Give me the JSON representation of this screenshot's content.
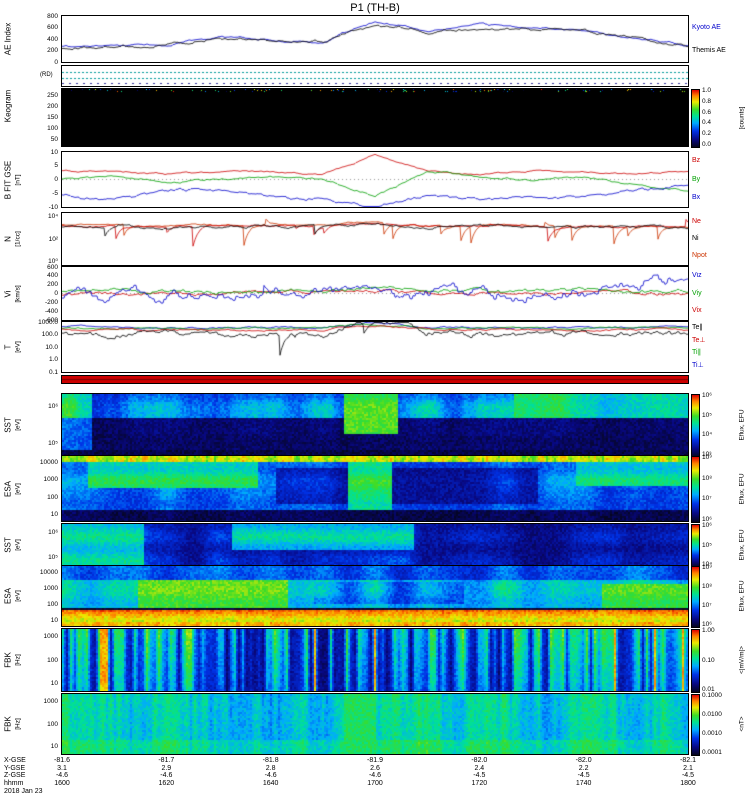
{
  "title": "P1 (TH-B)",
  "bottom_axis": {
    "date": "2018 Jan 23",
    "rows": [
      {
        "label": "X-GSE",
        "values": [
          "-81.6",
          "-81.7",
          "-81.8",
          "-81.9",
          "-82.0",
          "-82.0",
          "-82.1"
        ]
      },
      {
        "label": "Y-GSE",
        "values": [
          "3.1",
          "2.9",
          "2.8",
          "2.6",
          "2.4",
          "2.2",
          "2.1"
        ]
      },
      {
        "label": "Z-GSE",
        "values": [
          "-4.6",
          "-4.6",
          "-4.6",
          "-4.6",
          "-4.5",
          "-4.5",
          "-4.5"
        ]
      },
      {
        "label": "hhmm",
        "values": [
          "1600",
          "1620",
          "1640",
          "1700",
          "1720",
          "1740",
          "1800"
        ]
      }
    ]
  },
  "panels": [
    {
      "key": "ae",
      "ylabel": "AE Index",
      "yticks": [
        "800",
        "600",
        "400",
        "200",
        "0"
      ],
      "legend": [
        {
          "label": "Kyoto AE",
          "color": "#0000cc"
        },
        {
          "label": "Themis AE",
          "color": "#000000"
        }
      ]
    },
    {
      "key": "stations",
      "ylabel": "(RD)"
    },
    {
      "key": "keogram",
      "ylabel": "Keogram",
      "yticks": [
        "250",
        "200",
        "150",
        "100",
        "50"
      ],
      "colorbar": {
        "ticks": [
          "1.0",
          "0.8",
          "0.6",
          "0.4",
          "0.2",
          "0.0"
        ],
        "unit": "[counts]"
      }
    },
    {
      "key": "bfit",
      "ylabel": "B FIT GSE",
      "yunit": "[nT]",
      "yticks": [
        "10",
        "5",
        "0",
        "-5",
        "-10"
      ],
      "legend": [
        {
          "label": "Bz",
          "color": "#cc0000"
        },
        {
          "label": "By",
          "color": "#00a000"
        },
        {
          "label": "Bx",
          "color": "#0000cc"
        }
      ]
    },
    {
      "key": "density",
      "ylabel": "N",
      "yunit": "[1/cc]",
      "yticks": [
        "10⁴",
        "10²",
        "10⁰"
      ],
      "legend": [
        {
          "label": "Ne",
          "color": "#cc0000"
        },
        {
          "label": "Ni",
          "color": "#000000"
        },
        {
          "label": "Npot",
          "color": "#cc3300"
        }
      ]
    },
    {
      "key": "velocity",
      "ylabel": "Vi",
      "yunit": "[km/s]",
      "yticks": [
        "600",
        "400",
        "200",
        "0",
        "-200",
        "-400",
        "-600"
      ],
      "legend": [
        {
          "label": "Viz",
          "color": "#0000cc"
        },
        {
          "label": "Viy",
          "color": "#00a000"
        },
        {
          "label": "Vix",
          "color": "#cc0000"
        }
      ]
    },
    {
      "key": "temperature",
      "ylabel": "T",
      "yunit": "[eV]",
      "yticks": [
        "1000.0",
        "100.0",
        "10.0",
        "1.0",
        "0.1"
      ],
      "legend": [
        {
          "label": "Te∥",
          "color": "#000000"
        },
        {
          "label": "Te⊥",
          "color": "#cc0000"
        },
        {
          "label": "Ti∥",
          "color": "#00a000"
        },
        {
          "label": "Ti⊥",
          "color": "#0000cc"
        }
      ]
    },
    {
      "key": "modebar"
    },
    {
      "key": "sst_e",
      "ylabel": "SST",
      "yunit": "[eV]",
      "yticks": [
        "10⁶",
        "10⁵"
      ],
      "colorbar": {
        "ticks": [
          "10⁶",
          "10⁵",
          "10⁴",
          "10³"
        ],
        "unit": "Eflux, EFU"
      }
    },
    {
      "key": "esa_e",
      "ylabel": "ESA",
      "yunit": "[eV]",
      "yticks": [
        "10000",
        "1000",
        "100",
        "10"
      ],
      "colorbar": {
        "ticks": [
          "10⁹",
          "10⁸",
          "10⁷",
          "10⁶"
        ],
        "unit": "Eflux, EFU"
      }
    },
    {
      "key": "sst_i",
      "ylabel": "SST",
      "yunit": "[eV]",
      "yticks": [
        "10⁶",
        "10⁵"
      ],
      "colorbar": {
        "ticks": [
          "10⁶",
          "10⁵",
          "10⁴"
        ],
        "unit": "Eflux, EFU"
      }
    },
    {
      "key": "esa_i",
      "ylabel": "ESA",
      "yunit": "[eV]",
      "yticks": [
        "10000",
        "1000",
        "100",
        "10"
      ],
      "colorbar": {
        "ticks": [
          "10⁹",
          "10⁸",
          "10⁷",
          "10⁶"
        ],
        "unit": "Eflux, EFU"
      }
    },
    {
      "key": "fbk_e",
      "ylabel": "FBK",
      "yunit": "[Hz]",
      "yticks": [
        "1000",
        "100",
        "10"
      ],
      "colorbar": {
        "ticks": [
          "1.00",
          "0.10",
          "0.01"
        ],
        "unit": "<|mV/m|>"
      }
    },
    {
      "key": "fbk_b",
      "ylabel": "FBK",
      "yunit": "[Hz]",
      "yticks": [
        "1000",
        "100",
        "10"
      ],
      "colorbar": {
        "ticks": [
          "0.1000",
          "0.0100",
          "0.0010",
          "0.0001"
        ],
        "unit": "<nT>"
      }
    }
  ],
  "chart_data": [
    {
      "id": "ae_index",
      "type": "line",
      "ylabel": "AE Index",
      "ylim": [
        0,
        800
      ],
      "x": [
        "16:00",
        "16:10",
        "16:20",
        "16:30",
        "16:40",
        "16:50",
        "17:00",
        "17:10",
        "17:20",
        "17:30",
        "17:40",
        "17:50",
        "18:00"
      ],
      "series": [
        {
          "name": "Kyoto AE",
          "color": "#0000cc",
          "values": [
            260,
            280,
            300,
            430,
            400,
            350,
            720,
            560,
            640,
            600,
            560,
            420,
            300
          ]
        },
        {
          "name": "Themis AE",
          "color": "#000000",
          "values": [
            240,
            260,
            320,
            420,
            380,
            360,
            650,
            540,
            600,
            570,
            530,
            400,
            280
          ]
        }
      ]
    },
    {
      "id": "stations",
      "type": "availability",
      "note": "dotted ground-station data availability marks"
    },
    {
      "id": "keogram",
      "type": "heatmap",
      "ylabel": "Keogram",
      "ylim": [
        0,
        300
      ],
      "value_range": [
        0,
        1
      ],
      "unit": "counts",
      "note": "no imager data in interval (panel black)"
    },
    {
      "id": "b_fit_gse",
      "type": "line",
      "ylabel": "B FIT GSE [nT]",
      "ylim": [
        -10,
        10
      ],
      "series": [
        {
          "name": "Bz",
          "color": "#cc0000",
          "values": [
            3,
            3,
            2,
            3,
            3,
            2,
            9,
            3,
            2,
            3,
            3,
            2,
            3
          ]
        },
        {
          "name": "By",
          "color": "#00a000",
          "values": [
            0,
            1,
            -1,
            0,
            1,
            0,
            -6,
            3,
            1,
            0,
            1,
            -2,
            -4
          ]
        },
        {
          "name": "Bx",
          "color": "#0000cc",
          "values": [
            -6,
            -8,
            -4,
            -4,
            -7,
            -7,
            -10,
            -6,
            -7,
            -7,
            -6,
            -4,
            -2
          ]
        }
      ]
    },
    {
      "id": "density",
      "type": "line",
      "log": true,
      "ylabel": "N [1/cc]",
      "ylim": [
        0.1,
        10000
      ],
      "series": [
        {
          "name": "Npot",
          "color": "#cc3300",
          "values": [
            700,
            650,
            600,
            680,
            700,
            650,
            1500,
            600,
            650,
            700,
            680,
            600,
            520
          ]
        },
        {
          "name": "Ne",
          "color": "#cc0000",
          "values": [
            600,
            550,
            500,
            580,
            600,
            550,
            1200,
            500,
            550,
            600,
            580,
            500,
            450
          ]
        },
        {
          "name": "Ni",
          "color": "#000000",
          "values": [
            500,
            480,
            420,
            500,
            520,
            480,
            900,
            430,
            480,
            520,
            500,
            430,
            380
          ]
        }
      ]
    },
    {
      "id": "velocity",
      "type": "line",
      "ylabel": "Vi [km/s]",
      "ylim": [
        -600,
        600
      ],
      "series": [
        {
          "name": "Vix",
          "color": "#cc0000",
          "values": [
            -20,
            0,
            10,
            -10,
            0,
            10,
            60,
            0,
            -10,
            0,
            10,
            0,
            -40
          ]
        },
        {
          "name": "Viy",
          "color": "#00a000",
          "values": [
            40,
            50,
            40,
            30,
            40,
            50,
            120,
            50,
            40,
            40,
            50,
            60,
            80
          ]
        },
        {
          "name": "Viz",
          "color": "#0000cc",
          "values": [
            -20,
            -40,
            -60,
            -10,
            20,
            0,
            180,
            -60,
            -20,
            0,
            20,
            220,
            420
          ]
        }
      ]
    },
    {
      "id": "temperature",
      "type": "line",
      "log": true,
      "ylabel": "T [eV]",
      "ylim": [
        0.1,
        1000
      ],
      "series": [
        {
          "name": "Ti⊥",
          "color": "#0000cc",
          "values": [
            380,
            370,
            360,
            370,
            380,
            370,
            800,
            380,
            370,
            380,
            370,
            390,
            380
          ]
        },
        {
          "name": "Ti∥",
          "color": "#00a000",
          "values": [
            320,
            310,
            300,
            310,
            320,
            310,
            700,
            320,
            310,
            320,
            310,
            330,
            320
          ]
        },
        {
          "name": "Te⊥",
          "color": "#cc0000",
          "values": [
            240,
            230,
            220,
            230,
            240,
            230,
            500,
            240,
            230,
            240,
            230,
            240,
            230
          ]
        },
        {
          "name": "Te∥",
          "color": "#000000",
          "values": [
            120,
            80,
            100,
            60,
            110,
            90,
            600,
            130,
            100,
            90,
            110,
            130,
            100
          ]
        }
      ]
    },
    {
      "id": "mode_bar",
      "type": "marker",
      "color": "#cc0000",
      "note": "instrument mode bar (solid red)"
    },
    {
      "id": "sst_electrons",
      "type": "heatmap",
      "ylabel": "SST [eV]",
      "log_y": true,
      "y_range_ev": [
        30000,
        1000000
      ],
      "colorbar": {
        "unit": "Eflux, EFU",
        "range": [
          "10³",
          "10⁶"
        ]
      },
      "features": "dark low-flux background with cyan band at lower energies, brightening near 16:55 and after 17:30"
    },
    {
      "id": "esa_electrons",
      "type": "heatmap",
      "ylabel": "ESA [eV]",
      "log_y": true,
      "y_range_ev": [
        10,
        30000
      ],
      "colorbar": {
        "unit": "Eflux, EFU",
        "range": [
          "10⁶",
          "10⁹"
        ]
      },
      "features": "bright green band at top energies, patchy cyan 16:05-16:35 and near 16:55, darker 16:40-17:30, black at lowest energies"
    },
    {
      "id": "sst_ions",
      "type": "heatmap",
      "ylabel": "SST [eV]",
      "log_y": true,
      "y_range_ev": [
        30000,
        1000000
      ],
      "colorbar": {
        "unit": "Eflux, EFU",
        "range": [
          "10⁴",
          "10⁶"
        ]
      },
      "features": "patchy cyan/green flux, strongest before 16:10 and 16:30-16:55"
    },
    {
      "id": "esa_ions",
      "type": "heatmap",
      "ylabel": "ESA [eV]",
      "log_y": true,
      "y_range_ev": [
        10,
        30000
      ],
      "colorbar": {
        "unit": "Eflux, EFU",
        "range": [
          "10⁶",
          "10⁹"
        ]
      },
      "features": "intense orange-yellow band at low energies, green enhancements 16:15-16:40 and after 17:45, black spacecraft-potential trace"
    },
    {
      "id": "fbk_electric",
      "type": "heatmap",
      "ylabel": "FBK [Hz]",
      "log_y": true,
      "y_range_hz": [
        2,
        2048
      ],
      "colorbar": {
        "unit": "<|mV/m|>",
        "range": [
          0.01,
          1.0
        ]
      },
      "features": "bursty vertical striping across all frequencies, strongest 16:50-17:05 and near end of interval"
    },
    {
      "id": "fbk_magnetic",
      "type": "heatmap",
      "ylabel": "FBK [Hz]",
      "log_y": true,
      "y_range_hz": [
        2,
        2048
      ],
      "colorbar": {
        "unit": "<nT>",
        "range": [
          0.0001,
          0.1
        ]
      },
      "features": "smooth cyan-green emission across the whole band"
    }
  ]
}
